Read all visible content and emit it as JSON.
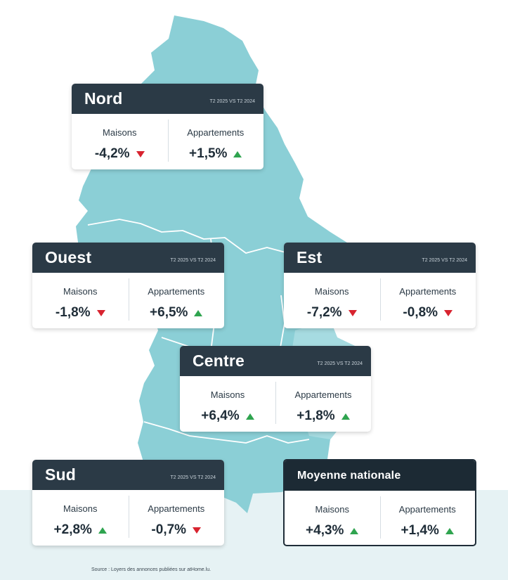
{
  "colors": {
    "map_fill": "#8bcfd6",
    "map_fill_east": "#a6dbe1",
    "header_bg": "#2b3a46",
    "header_bg_national": "#1c2a34",
    "arrow_up": "#2fa44f",
    "arrow_down": "#d8232f",
    "bottom_band": "#e6f2f4"
  },
  "cards": {
    "nord": {
      "title": "Nord",
      "period": "T2 2025 VS T2 2024",
      "houses_label": "Maisons",
      "houses_value": "-4,2%",
      "houses_trend": "down",
      "apartments_label": "Appartements",
      "apartments_value": "+1,5%",
      "apartments_trend": "up"
    },
    "ouest": {
      "title": "Ouest",
      "period": "T2 2025 VS T2 2024",
      "houses_label": "Maisons",
      "houses_value": "-1,8%",
      "houses_trend": "down",
      "apartments_label": "Appartements",
      "apartments_value": "+6,5%",
      "apartments_trend": "up"
    },
    "est": {
      "title": "Est",
      "period": "T2 2025 VS T2 2024",
      "houses_label": "Maisons",
      "houses_value": "-7,2%",
      "houses_trend": "down",
      "apartments_label": "Appartements",
      "apartments_value": "-0,8%",
      "apartments_trend": "down"
    },
    "centre": {
      "title": "Centre",
      "period": "T2 2025 VS T2 2024",
      "houses_label": "Maisons",
      "houses_value": "+6,4%",
      "houses_trend": "up",
      "apartments_label": "Appartements",
      "apartments_value": "+1,8%",
      "apartments_trend": "up"
    },
    "sud": {
      "title": "Sud",
      "period": "T2 2025 VS T2 2024",
      "houses_label": "Maisons",
      "houses_value": "+2,8%",
      "houses_trend": "up",
      "apartments_label": "Appartements",
      "apartments_value": "-0,7%",
      "apartments_trend": "down"
    },
    "national": {
      "title": "Moyenne nationale",
      "houses_label": "Maisons",
      "houses_value": "+4,3%",
      "houses_trend": "up",
      "apartments_label": "Appartements",
      "apartments_value": "+1,4%",
      "apartments_trend": "up"
    }
  },
  "source": "Source : Loyers des annonces publiées sur atHome.lu."
}
